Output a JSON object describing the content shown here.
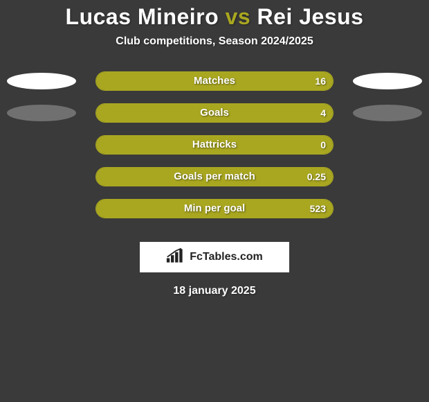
{
  "background_color": "#3a3a3a",
  "accent_color": "#a9a720",
  "text_color": "#ffffff",
  "title": {
    "player1": "Lucas Mineiro",
    "vs": "vs",
    "player2": "Rei Jesus",
    "fontsize": 32
  },
  "subtitle": "Club competitions, Season 2024/2025",
  "rows": [
    {
      "label": "Matches",
      "value": "16",
      "fill_pct": 100,
      "fill_color": "#a9a720",
      "left_ellipse": "white",
      "right_ellipse": "white"
    },
    {
      "label": "Goals",
      "value": "4",
      "fill_pct": 100,
      "fill_color": "#a9a720",
      "left_ellipse": "grey",
      "right_ellipse": "grey"
    },
    {
      "label": "Hattricks",
      "value": "0",
      "fill_pct": 100,
      "fill_color": "#a9a720",
      "left_ellipse": null,
      "right_ellipse": null
    },
    {
      "label": "Goals per match",
      "value": "0.25",
      "fill_pct": 100,
      "fill_color": "#a9a720",
      "left_ellipse": null,
      "right_ellipse": null
    },
    {
      "label": "Min per goal",
      "value": "523",
      "fill_pct": 100,
      "fill_color": "#a9a720",
      "left_ellipse": null,
      "right_ellipse": null
    }
  ],
  "brand": {
    "name": "FcTables.com",
    "icon_color": "#222222",
    "background": "#ffffff"
  },
  "date": "18 january 2025"
}
